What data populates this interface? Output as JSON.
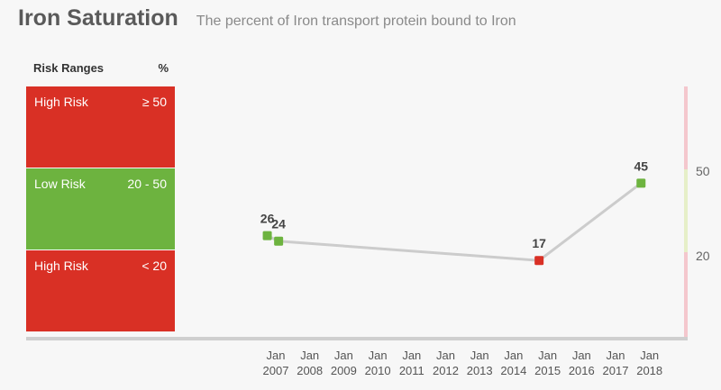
{
  "title": "Iron Saturation",
  "subtitle": "The percent of Iron transport protein bound to Iron",
  "risk_table": {
    "header": "Risk Ranges",
    "unit_header": "%",
    "bands": [
      {
        "label": "High Risk",
        "range": "≥ 50",
        "color": "#d93025"
      },
      {
        "label": "Low Risk",
        "range": "20 - 50",
        "color": "#6db33f"
      },
      {
        "label": "High Risk",
        "range": "< 20",
        "color": "#d93025"
      }
    ]
  },
  "right_axis": {
    "labels": [
      "50",
      "20"
    ],
    "colors": {
      "high": "#f4c7cd",
      "low": "#e6efc8"
    }
  },
  "chart_data": {
    "type": "line",
    "title": "Iron Saturation",
    "subtitle": "The percent of Iron transport protein bound to Iron",
    "x_ticks": [
      {
        "month": "Jan",
        "year": "2007"
      },
      {
        "month": "Jan",
        "year": "2008"
      },
      {
        "month": "Jan",
        "year": "2009"
      },
      {
        "month": "Jan",
        "year": "2010"
      },
      {
        "month": "Jan",
        "year": "2011"
      },
      {
        "month": "Jan",
        "year": "2012"
      },
      {
        "month": "Jan",
        "year": "2013"
      },
      {
        "month": "Jan",
        "year": "2014"
      },
      {
        "month": "Jan",
        "year": "2015"
      },
      {
        "month": "Jan",
        "year": "2016"
      },
      {
        "month": "Jan",
        "year": "2017"
      },
      {
        "month": "Jan",
        "year": "2018"
      }
    ],
    "series": [
      {
        "points": [
          {
            "date": "2006-10",
            "value": 26,
            "status": "low risk"
          },
          {
            "date": "2007-02",
            "value": 24,
            "status": "low risk"
          },
          {
            "date": "2014-10",
            "value": 17,
            "status": "high risk"
          },
          {
            "date": "2017-10",
            "value": 45,
            "status": "low risk"
          }
        ]
      }
    ],
    "ylim": [
      0,
      80
    ],
    "thresholds": [
      20,
      50
    ],
    "colors": {
      "line": "#cccccc",
      "low_risk": "#6db33f",
      "high_risk": "#d93025"
    }
  }
}
